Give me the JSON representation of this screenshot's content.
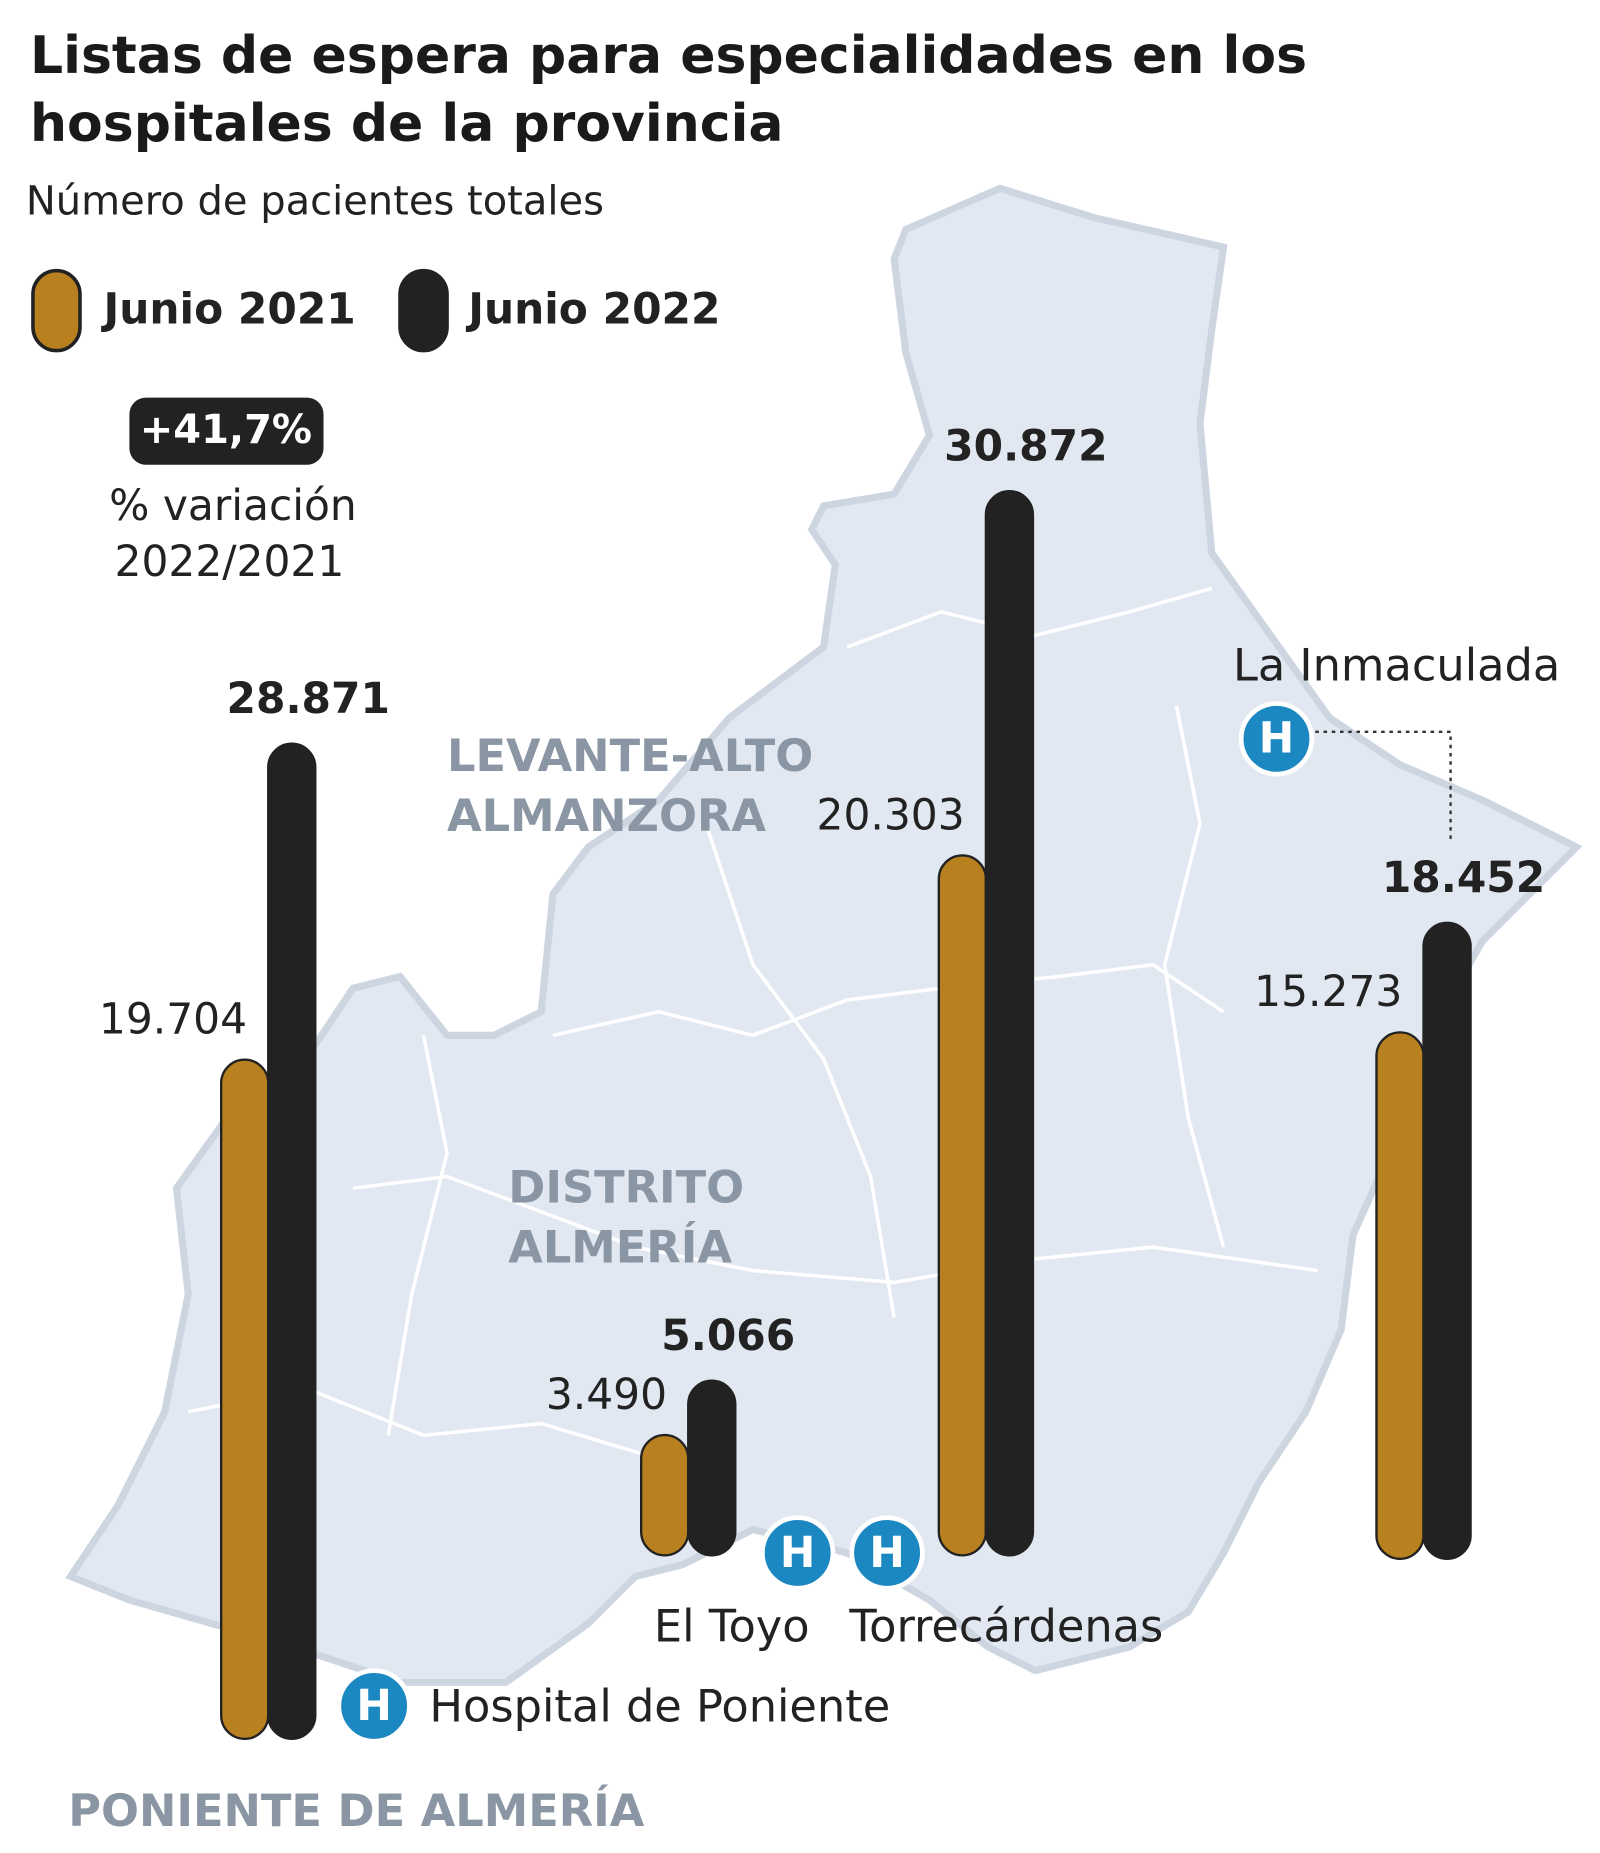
{
  "chart_data": {
    "type": "bar",
    "title": "Listas de espera para especialidades en los hospitales de la provincia",
    "subtitle": "Número de pacientes totales",
    "categories": [
      "Hospital de Poniente",
      "El Toyo",
      "Torrecárdenas",
      "La Inmaculada"
    ],
    "series": [
      {
        "name": "Junio 2021",
        "color": "#b8801f",
        "values": [
          19704,
          3490,
          20303,
          15273
        ],
        "value_labels": [
          "19.704",
          "3.490",
          "20.303",
          "15.273"
        ]
      },
      {
        "name": "Junio 2022",
        "color": "#222222",
        "values": [
          28871,
          5066,
          30872,
          18452
        ],
        "value_labels": [
          "28.871",
          "5.066",
          "30.872",
          "18.452"
        ]
      }
    ],
    "annotations": {
      "badge": "+41,7%",
      "lines": [
        "% variación",
        "2022/2021"
      ]
    },
    "regions": [
      [
        "LEVANTE-ALTO",
        "ALMANZORA"
      ],
      [
        "DISTRITO",
        "ALMERÍA"
      ],
      [
        "PONIENTE DE ALMERÍA"
      ]
    ],
    "hospital_icon": "H"
  }
}
